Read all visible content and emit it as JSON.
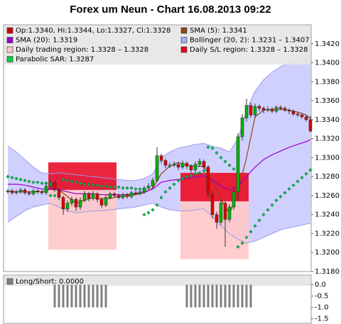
{
  "chart_data": {
    "type": "candlestick",
    "title": "Forex um Neun - Chart 16.08.2013 09:22",
    "ylim": [
      1.318,
      1.344
    ],
    "yticks": [
      {
        "value": 1.318,
        "label": "1.3180"
      },
      {
        "value": 1.32,
        "label": "1.3200"
      },
      {
        "value": 1.322,
        "label": "1.3220"
      },
      {
        "value": 1.324,
        "label": "1.3240"
      },
      {
        "value": 1.326,
        "label": "1.3260"
      },
      {
        "value": 1.328,
        "label": "1.3280"
      },
      {
        "value": 1.33,
        "label": "1.3300"
      },
      {
        "value": 1.332,
        "label": "1.3320"
      },
      {
        "value": 1.334,
        "label": "1.3340"
      },
      {
        "value": 1.336,
        "label": "1.3360"
      },
      {
        "value": 1.338,
        "label": "1.3380"
      },
      {
        "value": 1.34,
        "label": "1.3400"
      },
      {
        "value": 1.342,
        "label": "1.3420"
      }
    ],
    "candles": {
      "name": "Op:1.3340, Hi:1.3344, Lo:1.3327, Cl:1.3328",
      "color_up": "#00b400",
      "color_down": "#e00000",
      "legend_color": "#cc0000",
      "open": [
        1.3264,
        1.3265,
        1.3263,
        1.3264,
        1.3266,
        1.3263,
        1.3262,
        1.3265,
        1.3264,
        1.3263,
        1.327,
        1.3274,
        1.3266,
        1.3258,
        1.3246,
        1.3252,
        1.3256,
        1.3248,
        1.3255,
        1.3262,
        1.3257,
        1.3262,
        1.3256,
        1.325,
        1.3258,
        1.3262,
        1.326,
        1.3258,
        1.3261,
        1.3259,
        1.3263,
        1.3262,
        1.3264,
        1.3268,
        1.327,
        1.3276,
        1.3302,
        1.3297,
        1.3292,
        1.3292,
        1.3293,
        1.329,
        1.3294,
        1.3291,
        1.3287,
        1.3293,
        1.3296,
        1.329,
        1.3262,
        1.324,
        1.3232,
        1.3252,
        1.3235,
        1.3248,
        1.3264,
        1.3322,
        1.3342,
        1.3355,
        1.3345,
        1.3354,
        1.3352,
        1.335,
        1.3351,
        1.3349,
        1.3353,
        1.3352,
        1.335,
        1.3349,
        1.3346,
        1.3345,
        1.3343,
        1.334
      ],
      "high": [
        1.3267,
        1.3267,
        1.3266,
        1.3268,
        1.3268,
        1.3265,
        1.3267,
        1.3267,
        1.3266,
        1.3273,
        1.3277,
        1.3276,
        1.3268,
        1.326,
        1.3255,
        1.3259,
        1.3258,
        1.3258,
        1.3265,
        1.3264,
        1.3265,
        1.3264,
        1.3258,
        1.3261,
        1.3264,
        1.3264,
        1.3262,
        1.3263,
        1.3263,
        1.3265,
        1.3265,
        1.3266,
        1.327,
        1.3273,
        1.3279,
        1.3311,
        1.3304,
        1.3299,
        1.3295,
        1.3296,
        1.3295,
        1.3297,
        1.3296,
        1.3293,
        1.3296,
        1.3299,
        1.3298,
        1.3292,
        1.3265,
        1.3243,
        1.3256,
        1.3254,
        1.3251,
        1.3268,
        1.3326,
        1.3346,
        1.3362,
        1.3358,
        1.3357,
        1.3356,
        1.3354,
        1.3354,
        1.3353,
        1.3355,
        1.3355,
        1.3354,
        1.3352,
        1.3351,
        1.3348,
        1.3347,
        1.3345,
        1.3344
      ],
      "low": [
        1.3262,
        1.3261,
        1.3261,
        1.3262,
        1.3261,
        1.326,
        1.326,
        1.3262,
        1.3261,
        1.3261,
        1.3268,
        1.3264,
        1.3255,
        1.324,
        1.3243,
        1.3249,
        1.3244,
        1.3245,
        1.3253,
        1.3254,
        1.3255,
        1.3253,
        1.3247,
        1.3248,
        1.3256,
        1.3258,
        1.3256,
        1.3256,
        1.3257,
        1.3257,
        1.326,
        1.326,
        1.3262,
        1.3266,
        1.3268,
        1.3274,
        1.3294,
        1.3289,
        1.3289,
        1.329,
        1.3287,
        1.3288,
        1.3288,
        1.3284,
        1.3285,
        1.329,
        1.3287,
        1.3258,
        1.3236,
        1.3225,
        1.3229,
        1.3206,
        1.3232,
        1.3245,
        1.3255,
        1.3318,
        1.3338,
        1.3342,
        1.3342,
        1.3349,
        1.3347,
        1.3348,
        1.3347,
        1.3347,
        1.335,
        1.3348,
        1.3346,
        1.3344,
        1.3343,
        1.3341,
        1.3338,
        1.3327
      ],
      "close": [
        1.3265,
        1.3263,
        1.3264,
        1.3266,
        1.3263,
        1.3262,
        1.3265,
        1.3264,
        1.3263,
        1.327,
        1.3274,
        1.3266,
        1.3258,
        1.3246,
        1.3252,
        1.3256,
        1.3248,
        1.3255,
        1.3262,
        1.3257,
        1.3262,
        1.3256,
        1.325,
        1.3258,
        1.3262,
        1.326,
        1.3258,
        1.3261,
        1.3259,
        1.3263,
        1.3262,
        1.3264,
        1.3268,
        1.327,
        1.3276,
        1.3302,
        1.3297,
        1.3292,
        1.3292,
        1.3293,
        1.329,
        1.3294,
        1.3291,
        1.3287,
        1.3293,
        1.3296,
        1.329,
        1.3262,
        1.324,
        1.3232,
        1.3252,
        1.3235,
        1.3248,
        1.3264,
        1.3322,
        1.3342,
        1.3355,
        1.3345,
        1.3354,
        1.3352,
        1.335,
        1.3351,
        1.3349,
        1.3353,
        1.3352,
        1.335,
        1.3349,
        1.3346,
        1.3345,
        1.3343,
        1.334,
        1.3328
      ]
    },
    "indicators": {
      "x": [
        0,
        2,
        4,
        6,
        8,
        10,
        12,
        14,
        16,
        18,
        20,
        22,
        24,
        26,
        28,
        30,
        32,
        34,
        36,
        38,
        40,
        42,
        44,
        46,
        48,
        50,
        52,
        54,
        56,
        58,
        60,
        62,
        64,
        66,
        68,
        70,
        71
      ],
      "series": [
        {
          "name": "SMA (5): 1.3341",
          "color": "#8b4513",
          "values": [
            1.3265,
            1.3264,
            1.3264,
            1.3264,
            1.3264,
            1.3267,
            1.3266,
            1.3259,
            1.3252,
            1.3255,
            1.3258,
            1.3257,
            1.3257,
            1.3259,
            1.326,
            1.3261,
            1.3263,
            1.3268,
            1.3283,
            1.3291,
            1.3295,
            1.3292,
            1.3291,
            1.3291,
            1.3275,
            1.3256,
            1.3241,
            1.3264,
            1.33,
            1.3343,
            1.335,
            1.3351,
            1.3351,
            1.335,
            1.3348,
            1.3345,
            1.3341
          ]
        },
        {
          "name": "SMA (20): 1.3319",
          "color": "#9900cc",
          "values": [
            1.3272,
            1.3272,
            1.3271,
            1.3269,
            1.3267,
            1.3267,
            1.3266,
            1.3264,
            1.3262,
            1.3262,
            1.3262,
            1.3261,
            1.3261,
            1.3261,
            1.3261,
            1.3262,
            1.3264,
            1.3267,
            1.3274,
            1.3276,
            1.3277,
            1.3278,
            1.328,
            1.3281,
            1.3276,
            1.327,
            1.3266,
            1.327,
            1.328,
            1.329,
            1.3298,
            1.3303,
            1.3307,
            1.3311,
            1.3314,
            1.3317,
            1.3319
          ]
        }
      ]
    },
    "bollinger": {
      "name": "Bollinger (20, 2): 1.3231 – 1.3407",
      "color": "#aaaaff",
      "upper": [
        1.3312,
        1.3306,
        1.3298,
        1.329,
        1.3284,
        1.3283,
        1.3284,
        1.3283,
        1.3282,
        1.3281,
        1.328,
        1.3279,
        1.3278,
        1.3277,
        1.3276,
        1.3276,
        1.3278,
        1.3283,
        1.33,
        1.3306,
        1.331,
        1.3312,
        1.3314,
        1.3315,
        1.3312,
        1.331,
        1.3306,
        1.332,
        1.335,
        1.337,
        1.3382,
        1.339,
        1.3396,
        1.34,
        1.3404,
        1.3406,
        1.3407
      ],
      "lower": [
        1.3232,
        1.3238,
        1.3244,
        1.3248,
        1.325,
        1.3252,
        1.3248,
        1.3244,
        1.3242,
        1.3243,
        1.3244,
        1.3244,
        1.3245,
        1.3246,
        1.3247,
        1.3248,
        1.325,
        1.3252,
        1.3248,
        1.3245,
        1.3244,
        1.3244,
        1.3245,
        1.3246,
        1.3238,
        1.3228,
        1.322,
        1.3214,
        1.321,
        1.3212,
        1.3216,
        1.322,
        1.3224,
        1.3226,
        1.3228,
        1.323,
        1.3231
      ]
    },
    "regions": [
      {
        "name": "Daily trading region: 1.3328 – 1.3328",
        "color": "#ffc8c8",
        "areas": [
          {
            "x0": 10,
            "x1": 25,
            "low": 1.3203,
            "high": 1.3266
          },
          {
            "x0": 41,
            "x1": 56,
            "low": 1.3193,
            "high": 1.3284
          }
        ]
      },
      {
        "name": "Daily S/L region: 1.3328 – 1.3328",
        "color": "#e8001c",
        "areas": [
          {
            "x0": 10,
            "x1": 25,
            "low": 1.3266,
            "high": 1.3295
          },
          {
            "x0": 41,
            "x1": 56,
            "low": 1.3254,
            "high": 1.3284
          }
        ]
      }
    ],
    "sar": {
      "name": "Parabolic SAR: 1.3287",
      "color": "#00cc44",
      "values": [
        1.328,
        1.3279,
        1.3278,
        1.3277,
        1.3276,
        1.3275,
        1.3274,
        1.3274,
        1.3273,
        1.3273,
        1.326,
        1.326,
        1.3261,
        1.3277,
        1.3276,
        1.3275,
        1.3274,
        1.3273,
        1.3272,
        1.3272,
        1.3271,
        1.3271,
        1.327,
        1.327,
        1.3269,
        1.3269,
        1.3269,
        1.3268,
        1.3268,
        1.3268,
        1.3267,
        1.3267,
        1.324,
        1.3242,
        1.3245,
        1.325,
        1.3258,
        1.3264,
        1.3268,
        1.3272,
        1.3276,
        1.3278,
        1.328,
        1.3281,
        1.3283,
        1.3284,
        1.3286,
        1.3311,
        1.331,
        1.3305,
        1.33,
        1.3296,
        1.3292,
        1.3288,
        1.3206,
        1.321,
        1.3216,
        1.3222,
        1.3228,
        1.3234,
        1.324,
        1.3245,
        1.325,
        1.3255,
        1.3259,
        1.3263,
        1.3267,
        1.3271,
        1.3275,
        1.3279,
        1.3283,
        1.3287
      ]
    },
    "lower_panel": {
      "type": "bar",
      "ylim": [
        -1.7,
        0.425
      ],
      "yticks": [
        {
          "value": 0,
          "label": "0.0"
        },
        -0.5,
        {
          "value": -1,
          "label": "-1.0"
        },
        {
          "value": -1.5,
          "label": "-1.5"
        }
      ],
      "series": [
        {
          "name": "Long/Short: 0.0000",
          "color": "#808080",
          "values": [
            0,
            0,
            0,
            0,
            0,
            0,
            0,
            0,
            0,
            0,
            0,
            -1,
            -1,
            -1,
            -1,
            -1,
            -1,
            -1,
            -1,
            -1,
            -1,
            -1,
            -1,
            -1,
            0,
            0,
            0,
            0,
            0,
            0,
            0,
            0,
            0,
            0,
            0,
            0,
            0,
            0,
            0,
            0,
            0,
            0,
            -1,
            -1,
            -1,
            -1,
            -1,
            -1,
            -1,
            -1,
            -1,
            -1,
            -1,
            -1,
            -1,
            -1,
            -1,
            -1,
            0,
            0,
            0,
            0,
            0,
            0,
            0,
            0,
            0,
            0,
            0,
            0,
            0,
            0
          ]
        }
      ]
    }
  }
}
